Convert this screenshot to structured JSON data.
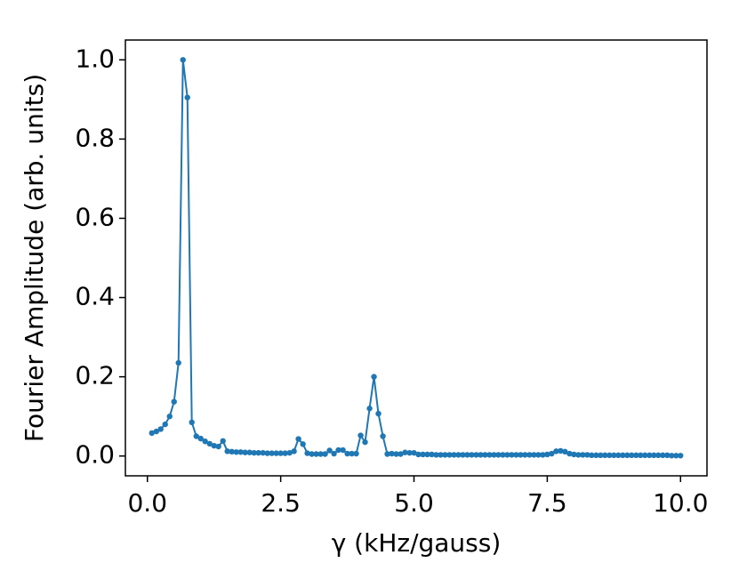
{
  "chart_data": {
    "type": "line",
    "xlabel": "γ (kHz/gauss)",
    "ylabel": "Fourier Amplitude (arb. units)",
    "xlim": [
      -0.413,
      10.496
    ],
    "ylim": [
      -0.05,
      1.05
    ],
    "xticks": [
      {
        "value": 0,
        "label": "0.0"
      },
      2.5,
      {
        "value": 5,
        "label": "5.0"
      },
      7.5,
      {
        "value": 10,
        "label": "10.0"
      }
    ],
    "yticks": [
      {
        "value": 0,
        "label": "0.0"
      },
      0.2,
      0.4,
      0.6,
      0.8,
      {
        "value": 1,
        "label": "1.0"
      }
    ],
    "x": [
      0.083,
      0.167,
      0.25,
      0.333,
      0.417,
      0.5,
      0.583,
      0.667,
      0.75,
      0.833,
      0.917,
      1.0,
      1.083,
      1.167,
      1.25,
      1.333,
      1.417,
      1.5,
      1.583,
      1.667,
      1.75,
      1.833,
      1.917,
      2.0,
      2.083,
      2.167,
      2.25,
      2.333,
      2.417,
      2.5,
      2.583,
      2.667,
      2.75,
      2.833,
      2.917,
      3.0,
      3.083,
      3.167,
      3.25,
      3.333,
      3.417,
      3.5,
      3.583,
      3.667,
      3.75,
      3.833,
      3.917,
      4.0,
      4.083,
      4.167,
      4.25,
      4.333,
      4.417,
      4.5,
      4.583,
      4.667,
      4.75,
      4.833,
      4.917,
      5.0,
      5.083,
      5.167,
      5.25,
      5.333,
      5.417,
      5.5,
      5.583,
      5.667,
      5.75,
      5.833,
      5.917,
      6.0,
      6.083,
      6.167,
      6.25,
      6.333,
      6.417,
      6.5,
      6.583,
      6.667,
      6.75,
      6.833,
      6.917,
      7.0,
      7.083,
      7.167,
      7.25,
      7.333,
      7.417,
      7.5,
      7.583,
      7.667,
      7.75,
      7.833,
      7.917,
      8.0,
      8.083,
      8.167,
      8.25,
      8.333,
      8.417,
      8.5,
      8.583,
      8.667,
      8.75,
      8.833,
      8.917,
      9.0,
      9.083,
      9.167,
      9.25,
      9.333,
      9.417,
      9.5,
      9.583,
      9.667,
      9.75,
      9.833,
      9.917,
      10.0
    ],
    "series": [
      {
        "color": "#1f77b4",
        "values": [
          0.058,
          0.062,
          0.068,
          0.08,
          0.1,
          0.137,
          0.235,
          1.0,
          0.905,
          0.085,
          0.05,
          0.044,
          0.037,
          0.031,
          0.026,
          0.024,
          0.038,
          0.012,
          0.011,
          0.01,
          0.01,
          0.009,
          0.009,
          0.008,
          0.008,
          0.008,
          0.007,
          0.007,
          0.007,
          0.007,
          0.007,
          0.008,
          0.012,
          0.043,
          0.03,
          0.007,
          0.005,
          0.005,
          0.005,
          0.005,
          0.014,
          0.006,
          0.015,
          0.015,
          0.006,
          0.006,
          0.006,
          0.052,
          0.035,
          0.12,
          0.2,
          0.107,
          0.05,
          0.005,
          0.006,
          0.005,
          0.005,
          0.009,
          0.008,
          0.008,
          0.004,
          0.004,
          0.004,
          0.004,
          0.003,
          0.003,
          0.003,
          0.003,
          0.003,
          0.003,
          0.003,
          0.003,
          0.003,
          0.003,
          0.003,
          0.003,
          0.003,
          0.003,
          0.003,
          0.003,
          0.003,
          0.003,
          0.003,
          0.003,
          0.003,
          0.003,
          0.003,
          0.003,
          0.003,
          0.004,
          0.006,
          0.012,
          0.013,
          0.011,
          0.006,
          0.004,
          0.003,
          0.003,
          0.003,
          0.002,
          0.002,
          0.002,
          0.002,
          0.002,
          0.002,
          0.002,
          0.002,
          0.002,
          0.002,
          0.002,
          0.002,
          0.002,
          0.002,
          0.002,
          0.002,
          0.002,
          0.002,
          0.001,
          0.001,
          0.001
        ]
      }
    ]
  }
}
